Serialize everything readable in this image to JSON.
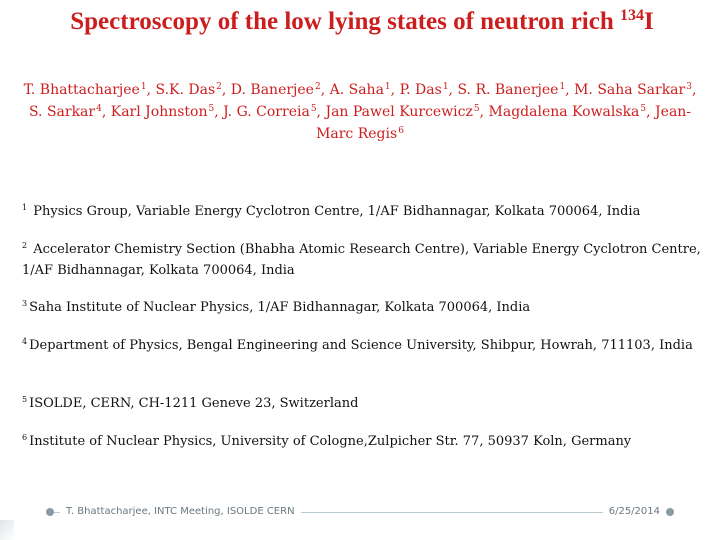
{
  "title": {
    "text": "Spectroscopy of the low lying states of neutron rich ",
    "mass": "134",
    "element": "I"
  },
  "authors": [
    {
      "name": "T. Bhattacharjee",
      "sup": "1"
    },
    {
      "name": "S.K. Das",
      "sup": "2"
    },
    {
      "name": "D. Banerjee",
      "sup": "2"
    },
    {
      "name": "A. Saha",
      "sup": "1"
    },
    {
      "name": "P. Das",
      "sup": "1"
    },
    {
      "name": "S. R. Banerjee",
      "sup": "1"
    },
    {
      "name": "M. Saha Sarkar",
      "sup": "3"
    },
    {
      "name": "S. Sarkar",
      "sup": "4"
    },
    {
      "name": "Karl Johnston",
      "sup": "5"
    },
    {
      "name": "J. G. Correia",
      "sup": "5"
    },
    {
      "name": "Jan Pawel Kurcewicz",
      "sup": "5"
    },
    {
      "name": "Magdalena Kowalska",
      "sup": "5"
    },
    {
      "name": "Jean-Marc Regis",
      "sup": "6"
    }
  ],
  "affiliations": [
    {
      "num": "1",
      "text": " Physics Group, Variable Energy Cyclotron Centre, 1/AF Bidhannagar, Kolkata 700064, India"
    },
    {
      "num": "2",
      "text": " Accelerator Chemistry Section (Bhabha Atomic Research Centre), Variable Energy Cyclotron Centre, 1/AF Bidhannagar, Kolkata 700064, India"
    },
    {
      "num": "3",
      "text": "Saha Institute of Nuclear Physics, 1/AF Bidhannagar, Kolkata 700064, India"
    },
    {
      "num": "4",
      "text": "Department of Physics, Bengal Engineering and Science University, Shibpur, Howrah, 711103, India"
    },
    {
      "num": "5",
      "text": "ISOLDE, CERN, CH-1211 Geneve 23, Switzerland"
    },
    {
      "num": "6",
      "text": "Institute of Nuclear Physics, University of Cologne,Zulpicher Str. 77, 50937 Koln, Germany"
    }
  ],
  "footer": {
    "left": "T. Bhattacharjee, INTC Meeting, ISOLDE CERN",
    "right": "6/25/2014"
  },
  "colors": {
    "title": "#cc1e1e",
    "body": "#111111",
    "footer": "#6b7880"
  }
}
